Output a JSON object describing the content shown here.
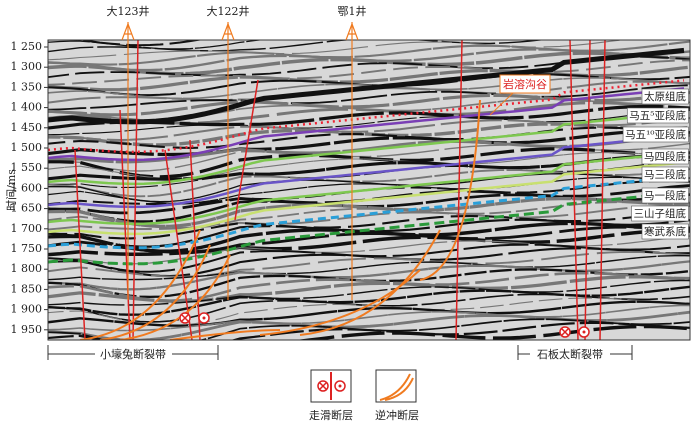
{
  "wells": [
    "大123井",
    "大122井",
    "鄂1井"
  ],
  "y_axis": {
    "label": "时间/ms",
    "ticks": [
      "1 250",
      "1 300",
      "1 350",
      "1 400",
      "1 450",
      "1 500",
      "1 550",
      "1 600",
      "1 650",
      "1 700",
      "1 750",
      "1 800",
      "1 850",
      "1 900",
      "1 950"
    ]
  },
  "horizons": [
    "太原组底",
    "马五⁵亚段底",
    "马五¹⁰亚段底",
    "马四段底",
    "马三段底",
    "马一段底",
    "三山子组底",
    "寒武系底"
  ],
  "annotation": "岩溶沟谷",
  "fault_zones": [
    "小壕兔断裂带",
    "石板太断裂带"
  ],
  "legend": [
    "走滑断层",
    "逆冲断层"
  ]
}
